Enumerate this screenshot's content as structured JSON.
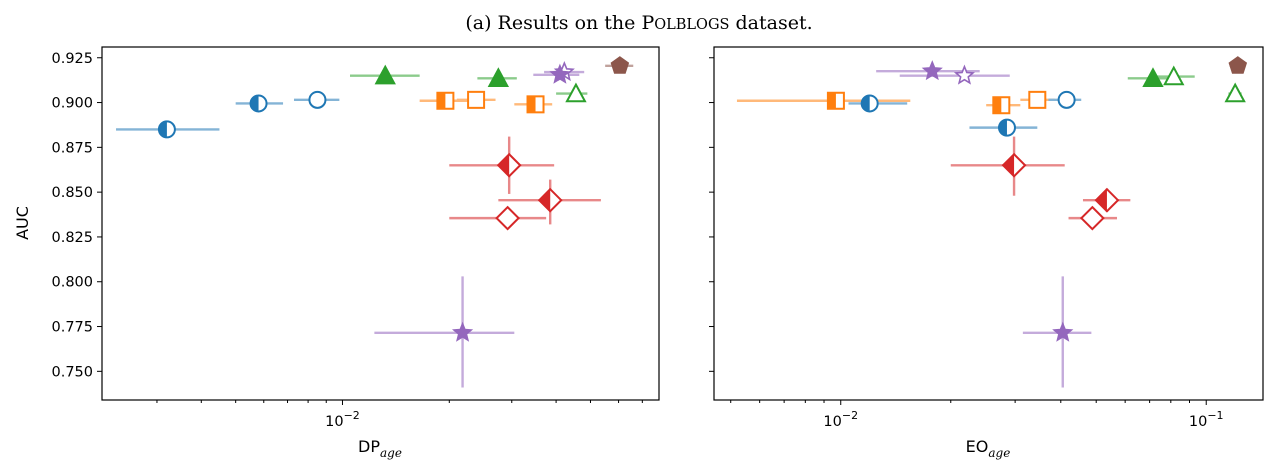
{
  "caption": {
    "prefix": "(a) Results on the ",
    "dataset_first": "P",
    "dataset_rest": "OLBLOGS",
    "suffix": " dataset."
  },
  "chart_data": [
    {
      "type": "scatter",
      "panel": "left",
      "xlabel_main": "DP",
      "xlabel_sub": "age",
      "ylabel": "AUC",
      "xscale": "log",
      "xlim": [
        0.0021,
        0.078
      ],
      "ylim": [
        0.734,
        0.931
      ],
      "xticks": [
        {
          "value": 0.01,
          "base": "10",
          "exp": "−2"
        }
      ],
      "yticks": [
        "0.750",
        "0.775",
        "0.800",
        "0.825",
        "0.850",
        "0.875",
        "0.900",
        "0.925"
      ],
      "grid": false,
      "points": [
        {
          "x": 0.0032,
          "y": 0.885,
          "xerr": [
            0.0023,
            0.0045
          ],
          "yerr": null,
          "color": "#1f77b4",
          "marker": "circle-half"
        },
        {
          "x": 0.0058,
          "y": 0.8995,
          "xerr": [
            0.005,
            0.0068
          ],
          "yerr": null,
          "color": "#1f77b4",
          "marker": "circle-half"
        },
        {
          "x": 0.0085,
          "y": 0.9015,
          "xerr": [
            0.0073,
            0.0098
          ],
          "yerr": null,
          "color": "#1f77b4",
          "marker": "circle-open"
        },
        {
          "x": 0.0132,
          "y": 0.915,
          "xerr": [
            0.0105,
            0.0165
          ],
          "yerr": null,
          "color": "#2ca02c",
          "marker": "triangle-filled"
        },
        {
          "x": 0.0275,
          "y": 0.9135,
          "xerr": [
            0.024,
            0.031
          ],
          "yerr": null,
          "color": "#2ca02c",
          "marker": "triangle-filled"
        },
        {
          "x": 0.0455,
          "y": 0.905,
          "xerr": [
            0.04,
            0.049
          ],
          "yerr": null,
          "color": "#2ca02c",
          "marker": "triangle-open"
        },
        {
          "x": 0.0195,
          "y": 0.901,
          "xerr": [
            0.0165,
            0.0225
          ],
          "yerr": null,
          "color": "#ff7f0e",
          "marker": "square-half"
        },
        {
          "x": 0.0238,
          "y": 0.9015,
          "xerr": [
            0.021,
            0.027
          ],
          "yerr": null,
          "color": "#ff7f0e",
          "marker": "square-open"
        },
        {
          "x": 0.035,
          "y": 0.899,
          "xerr": [
            0.0305,
            0.039
          ],
          "yerr": null,
          "color": "#ff7f0e",
          "marker": "square-half"
        },
        {
          "x": 0.0422,
          "y": 0.917,
          "xerr": [
            0.037,
            0.048
          ],
          "yerr": null,
          "color": "#9467bd",
          "marker": "star-open"
        },
        {
          "x": 0.041,
          "y": 0.9155,
          "xerr": [
            0.0345,
            0.0465
          ],
          "yerr": null,
          "color": "#9467bd",
          "marker": "star-filled"
        },
        {
          "x": 0.0605,
          "y": 0.9205,
          "xerr": [
            0.055,
            0.066
          ],
          "yerr": null,
          "color": "#8c564b",
          "marker": "pentagon"
        },
        {
          "x": 0.0295,
          "y": 0.865,
          "xerr": [
            0.02,
            0.0395
          ],
          "yerr": [
            0.849,
            0.881
          ],
          "color": "#d62728",
          "marker": "diamond-half"
        },
        {
          "x": 0.0385,
          "y": 0.8455,
          "xerr": [
            0.0275,
            0.0535
          ],
          "yerr": [
            0.832,
            0.857
          ],
          "color": "#d62728",
          "marker": "diamond-half"
        },
        {
          "x": 0.0292,
          "y": 0.8355,
          "xerr": [
            0.02,
            0.0375
          ],
          "yerr": null,
          "color": "#d62728",
          "marker": "diamond-open"
        },
        {
          "x": 0.0218,
          "y": 0.7715,
          "xerr": [
            0.0123,
            0.0305
          ],
          "yerr": [
            0.741,
            0.803
          ],
          "color": "#9467bd",
          "marker": "star-filled"
        }
      ]
    },
    {
      "type": "scatter",
      "panel": "right",
      "xlabel_main": "EO",
      "xlabel_sub": "age",
      "ylabel": "",
      "xscale": "log",
      "xlim": [
        0.0045,
        0.143
      ],
      "ylim": [
        0.734,
        0.931
      ],
      "xticks": [
        {
          "value": 0.01,
          "base": "10",
          "exp": "−2"
        },
        {
          "value": 0.1,
          "base": "10",
          "exp": "−1"
        }
      ],
      "yticks": [],
      "grid": false,
      "points": [
        {
          "x": 0.0097,
          "y": 0.901,
          "xerr": [
            0.0052,
            0.0155
          ],
          "yerr": null,
          "color": "#ff7f0e",
          "marker": "square-half"
        },
        {
          "x": 0.012,
          "y": 0.8995,
          "xerr": [
            0.0105,
            0.0152
          ],
          "yerr": null,
          "color": "#1f77b4",
          "marker": "circle-half"
        },
        {
          "x": 0.0275,
          "y": 0.8985,
          "xerr": [
            0.025,
            0.031
          ],
          "yerr": null,
          "color": "#ff7f0e",
          "marker": "square-half"
        },
        {
          "x": 0.0345,
          "y": 0.9015,
          "xerr": [
            0.031,
            0.0385
          ],
          "yerr": null,
          "color": "#ff7f0e",
          "marker": "square-open"
        },
        {
          "x": 0.0415,
          "y": 0.9015,
          "xerr": [
            0.037,
            0.0455
          ],
          "yerr": null,
          "color": "#1f77b4",
          "marker": "circle-open"
        },
        {
          "x": 0.0285,
          "y": 0.886,
          "xerr": [
            0.0225,
            0.0345
          ],
          "yerr": null,
          "color": "#1f77b4",
          "marker": "circle-half"
        },
        {
          "x": 0.0178,
          "y": 0.9175,
          "xerr": [
            0.0125,
            0.024
          ],
          "yerr": null,
          "color": "#9467bd",
          "marker": "star-filled"
        },
        {
          "x": 0.0218,
          "y": 0.915,
          "xerr": [
            0.0145,
            0.029
          ],
          "yerr": null,
          "color": "#9467bd",
          "marker": "star-open"
        },
        {
          "x": 0.0715,
          "y": 0.9135,
          "xerr": [
            0.061,
            0.0835
          ],
          "yerr": null,
          "color": "#2ca02c",
          "marker": "triangle-filled"
        },
        {
          "x": 0.0815,
          "y": 0.9145,
          "xerr": [
            0.07,
            0.093
          ],
          "yerr": null,
          "color": "#2ca02c",
          "marker": "triangle-open"
        },
        {
          "x": 0.12,
          "y": 0.905,
          "xerr": [
            0.115,
            0.125
          ],
          "yerr": null,
          "color": "#2ca02c",
          "marker": "triangle-open"
        },
        {
          "x": 0.122,
          "y": 0.9205,
          "xerr": [
            0.116,
            0.128
          ],
          "yerr": null,
          "color": "#8c564b",
          "marker": "pentagon"
        },
        {
          "x": 0.0298,
          "y": 0.865,
          "xerr": [
            0.02,
            0.041
          ],
          "yerr": [
            0.848,
            0.881
          ],
          "color": "#d62728",
          "marker": "diamond-half"
        },
        {
          "x": 0.0535,
          "y": 0.8455,
          "xerr": [
            0.046,
            0.062
          ],
          "yerr": [
            0.839,
            0.852
          ],
          "color": "#d62728",
          "marker": "diamond-half"
        },
        {
          "x": 0.0488,
          "y": 0.8355,
          "xerr": [
            0.042,
            0.057
          ],
          "yerr": null,
          "color": "#d62728",
          "marker": "diamond-open"
        },
        {
          "x": 0.0405,
          "y": 0.7715,
          "xerr": [
            0.0315,
            0.0485
          ],
          "yerr": [
            0.741,
            0.803
          ],
          "color": "#9467bd",
          "marker": "star-filled"
        }
      ]
    }
  ]
}
